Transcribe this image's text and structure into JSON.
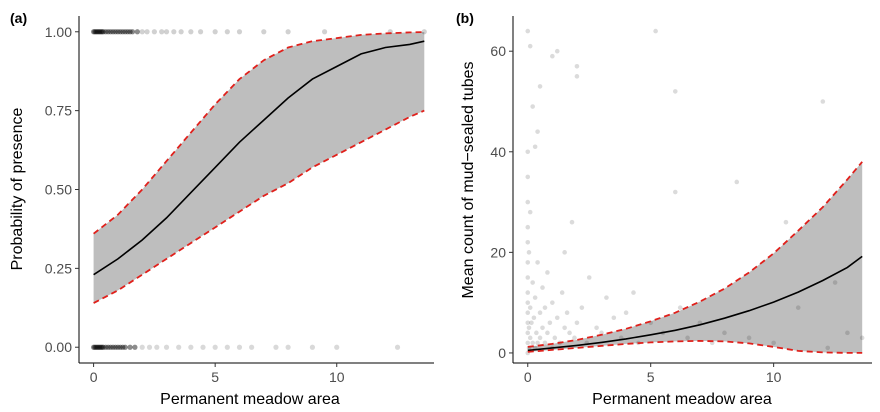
{
  "chart_data": [
    {
      "type": "line",
      "panel_label": "(a)",
      "xlabel": "Permanent meadow area",
      "ylabel": "Probability of presence",
      "xlim": [
        -0.6,
        14.0
      ],
      "ylim": [
        -0.05,
        1.05
      ],
      "x_ticks": [
        0,
        5,
        10
      ],
      "y_ticks": [
        0.0,
        0.25,
        0.5,
        0.75,
        1.0
      ],
      "y_tick_labels": [
        "0.00",
        "0.25",
        "0.50",
        "0.75",
        "1.00"
      ],
      "grid": false,
      "series": [
        {
          "role": "fit",
          "x": [
            0,
            1,
            2,
            3,
            4,
            5,
            6,
            7,
            8,
            9,
            10,
            11,
            12,
            13,
            13.6
          ],
          "y": [
            0.23,
            0.28,
            0.34,
            0.41,
            0.49,
            0.57,
            0.65,
            0.72,
            0.79,
            0.85,
            0.89,
            0.93,
            0.95,
            0.96,
            0.97
          ]
        },
        {
          "role": "upper-ci",
          "x": [
            0,
            1,
            2,
            3,
            4,
            5,
            6,
            7,
            8,
            9,
            10,
            11,
            12,
            13,
            13.6
          ],
          "y": [
            0.36,
            0.42,
            0.5,
            0.59,
            0.68,
            0.77,
            0.85,
            0.91,
            0.95,
            0.97,
            0.98,
            0.99,
            0.995,
            0.998,
            0.999
          ]
        },
        {
          "role": "lower-ci",
          "x": [
            0,
            1,
            2,
            3,
            4,
            5,
            6,
            7,
            8,
            9,
            10,
            11,
            12,
            13,
            13.6
          ],
          "y": [
            0.14,
            0.18,
            0.23,
            0.28,
            0.33,
            0.38,
            0.43,
            0.48,
            0.52,
            0.57,
            0.61,
            0.65,
            0.69,
            0.73,
            0.75
          ]
        }
      ],
      "points": {
        "presence_x": [
          0.0,
          0.05,
          0.1,
          0.15,
          0.2,
          0.25,
          0.3,
          0.35,
          0.4,
          0.5,
          0.6,
          0.7,
          0.8,
          0.9,
          1.0,
          1.1,
          1.2,
          1.3,
          1.4,
          1.5,
          1.6,
          1.8,
          2.0,
          2.2,
          2.5,
          2.8,
          3.0,
          3.3,
          3.6,
          4.0,
          4.4,
          5.0,
          5.5,
          6.0,
          7.0,
          8.0,
          9.5,
          12.2,
          13.6
        ],
        "absence_x": [
          0.0,
          0.05,
          0.1,
          0.15,
          0.2,
          0.25,
          0.3,
          0.35,
          0.4,
          0.5,
          0.6,
          0.7,
          0.8,
          0.9,
          1.0,
          1.1,
          1.2,
          1.3,
          1.5,
          1.7,
          2.0,
          2.3,
          2.6,
          3.0,
          3.5,
          4.0,
          4.5,
          5.0,
          5.5,
          6.0,
          6.5,
          7.5,
          8.0,
          9.0,
          10.0,
          12.5
        ]
      }
    },
    {
      "type": "scatter",
      "panel_label": "(b)",
      "xlabel": "Permanent meadow area",
      "ylabel": "Mean count of mud−sealed tubes",
      "xlim": [
        -0.6,
        14.0
      ],
      "ylim": [
        -2,
        67
      ],
      "x_ticks": [
        0,
        5,
        10
      ],
      "y_ticks": [
        0,
        20,
        40,
        60
      ],
      "y_tick_labels": [
        "0",
        "20",
        "40",
        "60"
      ],
      "grid": false,
      "series": [
        {
          "role": "fit",
          "x": [
            0,
            1,
            2,
            3,
            4,
            5,
            6,
            7,
            8,
            9,
            10,
            11,
            12,
            13,
            13.6
          ],
          "y": [
            0.5,
            1.0,
            1.5,
            2.1,
            2.8,
            3.6,
            4.5,
            5.6,
            6.9,
            8.4,
            10.1,
            12.1,
            14.4,
            17.0,
            19.2
          ]
        },
        {
          "role": "upper-ci",
          "x": [
            0,
            1,
            2,
            3,
            4,
            5,
            6,
            7,
            8,
            9,
            10,
            11,
            12,
            13,
            13.6
          ],
          "y": [
            1.2,
            1.8,
            2.6,
            3.6,
            4.8,
            6.3,
            8.0,
            10.2,
            12.8,
            16.0,
            19.8,
            24.3,
            29.0,
            34.5,
            38.0
          ]
        },
        {
          "role": "lower-ci",
          "x": [
            0,
            1,
            2,
            3,
            4,
            5,
            6,
            7,
            8,
            9,
            10,
            11,
            12,
            13,
            13.6
          ],
          "y": [
            0.2,
            0.6,
            1.0,
            1.4,
            1.8,
            2.1,
            2.3,
            2.4,
            2.3,
            1.9,
            1.2,
            0.4,
            0.1,
            0.0,
            0.0
          ]
        }
      ],
      "points": {
        "x": [
          0,
          0,
          0,
          0,
          0,
          0,
          0,
          0,
          0,
          0,
          0,
          0,
          0,
          0,
          0,
          0.05,
          0.05,
          0.05,
          0.1,
          0.1,
          0.1,
          0.15,
          0.2,
          0.2,
          0.25,
          0.3,
          0.3,
          0.35,
          0.4,
          0.4,
          0.5,
          0.5,
          0.6,
          0.6,
          0.7,
          0.7,
          0.8,
          0.8,
          0.9,
          1.0,
          1.0,
          1.1,
          1.2,
          1.3,
          1.4,
          1.5,
          1.5,
          1.6,
          1.7,
          1.8,
          1.9,
          2.0,
          2.0,
          2.2,
          2.4,
          2.5,
          2.8,
          3.0,
          3.2,
          3.5,
          3.8,
          4.0,
          4.3,
          4.5,
          5.0,
          5.2,
          5.5,
          6.0,
          6.0,
          6.2,
          6.5,
          7.0,
          7.5,
          8.0,
          8.5,
          9.0,
          10.0,
          10.5,
          11.0,
          12.0,
          12.2,
          12.5,
          13.0,
          13.6,
          0.3,
          0.4,
          1.0,
          1.2,
          2.0,
          0.1,
          0.2,
          0.5
        ],
        "y": [
          0,
          2,
          4,
          6,
          8,
          10,
          12,
          15,
          18,
          22,
          25,
          30,
          35,
          40,
          64,
          1,
          5,
          20,
          3,
          9,
          28,
          6,
          2,
          14,
          7,
          1,
          11,
          4,
          2,
          18,
          3,
          8,
          5,
          13,
          2,
          9,
          4,
          16,
          6,
          1,
          10,
          3,
          7,
          2,
          12,
          5,
          20,
          8,
          4,
          26,
          3,
          6,
          55,
          9,
          2,
          15,
          5,
          4,
          11,
          7,
          3,
          8,
          12,
          2,
          6,
          64,
          4,
          32,
          52,
          9,
          3,
          6,
          2,
          4,
          34,
          3,
          2,
          26,
          9,
          50,
          1,
          14,
          4,
          3,
          41,
          44,
          59,
          60,
          57,
          61,
          49,
          53
        ]
      }
    }
  ]
}
